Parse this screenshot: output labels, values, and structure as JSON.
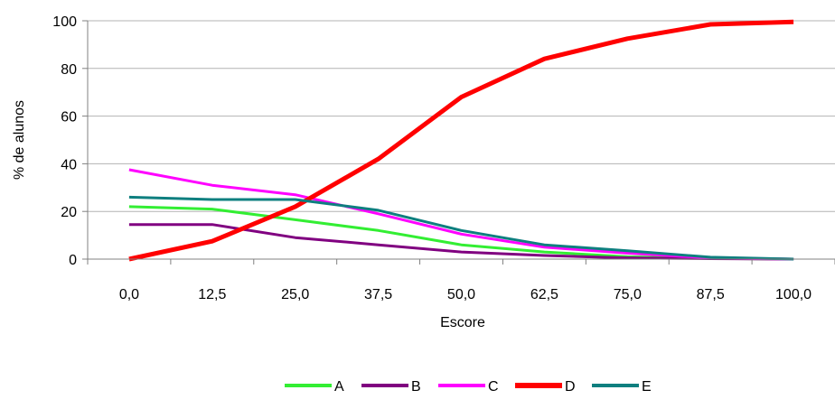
{
  "chart_data": {
    "type": "line",
    "title": "",
    "xlabel": "Escore",
    "ylabel": "% de alunos",
    "categories": [
      "0,0",
      "12,5",
      "25,0",
      "37,5",
      "50,0",
      "62,5",
      "75,0",
      "87,5",
      "100,0"
    ],
    "ylim": [
      0,
      100
    ],
    "yticks": [
      "0",
      "20",
      "40",
      "60",
      "80",
      "100"
    ],
    "grid": true,
    "legend_position": "bottom",
    "series": [
      {
        "name": "A",
        "color": "#33ee33",
        "values": [
          22,
          21,
          16.5,
          12,
          6,
          3,
          1,
          0.3,
          0
        ]
      },
      {
        "name": "B",
        "color": "#800080",
        "values": [
          14.5,
          14.5,
          9,
          6,
          3,
          1.5,
          0.5,
          0.2,
          0
        ]
      },
      {
        "name": "C",
        "color": "#ff00ff",
        "values": [
          37.5,
          31,
          27,
          19,
          10.5,
          5,
          2.5,
          0.5,
          0
        ]
      },
      {
        "name": "D",
        "color": "#ff0000",
        "values": [
          0,
          7.5,
          22,
          42,
          68,
          84,
          92.5,
          98.5,
          99.5
        ]
      },
      {
        "name": "E",
        "color": "#0e7f7f",
        "values": [
          26,
          25,
          25,
          20.5,
          12,
          6,
          3.5,
          0.8,
          0
        ]
      }
    ]
  }
}
